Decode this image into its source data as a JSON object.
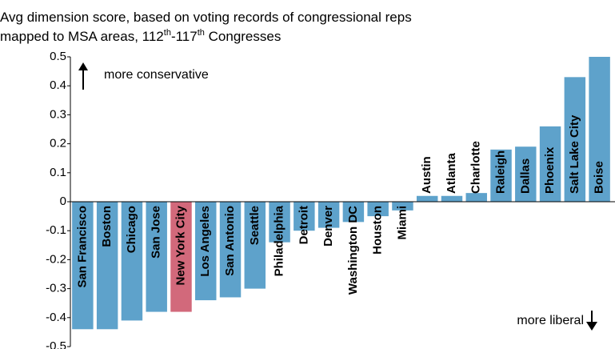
{
  "chart_data": {
    "type": "bar",
    "subtitle": [
      "Avg dimension score, based on voting records of congressional reps",
      "mapped to MSA areas, 112",
      "th",
      "-117",
      "th",
      " Congresses"
    ],
    "categories": [
      "San Francisco",
      "Boston",
      "Chicago",
      "San Jose",
      "New York City",
      "Los Angeles",
      "San Antonio",
      "Seattle",
      "Philadelphia",
      "Detroit",
      "Denver",
      "Washington DC",
      "Houston",
      "Miami",
      "Austin",
      "Atlanta",
      "Charlotte",
      "Raleigh",
      "Dallas",
      "Phoenix",
      "Salt Lake City",
      "Boise"
    ],
    "values": [
      -0.44,
      -0.44,
      -0.41,
      -0.38,
      -0.38,
      -0.34,
      -0.33,
      -0.3,
      -0.14,
      -0.1,
      -0.09,
      -0.07,
      -0.05,
      -0.03,
      0.02,
      0.02,
      0.03,
      0.18,
      0.19,
      0.26,
      0.43,
      0.5
    ],
    "colors": [
      "#5ea2cb",
      "#5ea2cb",
      "#5ea2cb",
      "#5ea2cb",
      "#d2697b",
      "#5ea2cb",
      "#5ea2cb",
      "#5ea2cb",
      "#5ea2cb",
      "#5ea2cb",
      "#5ea2cb",
      "#5ea2cb",
      "#5ea2cb",
      "#5ea2cb",
      "#5ea2cb",
      "#5ea2cb",
      "#5ea2cb",
      "#5ea2cb",
      "#5ea2cb",
      "#5ea2cb",
      "#5ea2cb",
      "#5ea2cb"
    ],
    "ylim": [
      -0.5,
      0.5
    ],
    "yticks": [
      -0.5,
      -0.4,
      -0.3,
      -0.2,
      -0.1,
      0,
      0.1,
      0.2,
      0.3,
      0.4,
      0.5
    ],
    "annotations": [
      "more conservative",
      "more liberal"
    ]
  }
}
